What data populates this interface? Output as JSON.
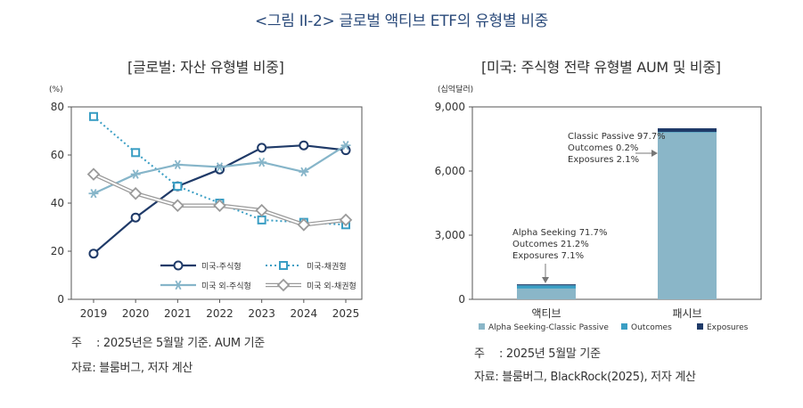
{
  "figure": {
    "title": "<그림 II-2> 글로벌 액티브 ETF의 유형별 비중"
  },
  "colors": {
    "dark_navy": "#1f3a68",
    "teal": "#3a9ec4",
    "light_blue": "#86b5c9",
    "gray": "#9a9a9a"
  },
  "chart_data": [
    {
      "type": "line",
      "title": "[글로벌: 자산 유형별 비중]",
      "ylabel": "(%)",
      "xlabel": "",
      "categories": [
        "2019",
        "2020",
        "2021",
        "2022",
        "2023",
        "2024",
        "2025"
      ],
      "ylim": [
        0,
        80
      ],
      "yticks": [
        "0",
        "20",
        "40",
        "60",
        "80"
      ],
      "grid": false,
      "legend": "bottom-right",
      "series": [
        {
          "name": "미국-주식형",
          "values": [
            19,
            34,
            47,
            54,
            63,
            64,
            62
          ],
          "style": "solid-circle",
          "color": "#1f3a68"
        },
        {
          "name": "미국-채권형",
          "values": [
            76,
            61,
            47,
            40,
            33,
            32,
            31
          ],
          "style": "dotted-square",
          "color": "#3a9ec4"
        },
        {
          "name": "미국 외-주식형",
          "values": [
            44,
            52,
            56,
            55,
            57,
            53,
            64
          ],
          "style": "solid-star",
          "color": "#86b5c9"
        },
        {
          "name": "미국 외-채권형",
          "values": [
            52,
            44,
            39,
            39,
            37,
            31,
            33
          ],
          "style": "double-diamond",
          "color": "#9a9a9a"
        }
      ]
    },
    {
      "type": "bar",
      "stacked": true,
      "title": "[미국: 주식형 전략 유형별 AUM 및 비중]",
      "ylabel": "(십억달러)",
      "xlabel": "",
      "categories": [
        "액티브",
        "패시브"
      ],
      "ylim": [
        0,
        9000
      ],
      "yticks": [
        "0",
        "3,000",
        "6,000",
        "9,000"
      ],
      "grid": false,
      "legend": "bottom",
      "series": [
        {
          "name": "Alpha Seeking-Classic Passive",
          "values": [
            503,
            7816
          ],
          "color": "#8ab6c8"
        },
        {
          "name": "Outcomes",
          "values": [
            149,
            16
          ],
          "color": "#3a9ec4"
        },
        {
          "name": "Exposures",
          "values": [
            50,
            168
          ],
          "color": "#1f3a68"
        }
      ],
      "annotations": [
        {
          "category": "액티브",
          "lines": [
            "Alpha Seeking 71.7%",
            "Outcomes 21.2%",
            "Exposures 7.1%"
          ]
        },
        {
          "category": "패시브",
          "lines": [
            "Classic Passive 97.7%",
            "Outcomes 0.2%",
            "Exposures 2.1%"
          ]
        }
      ]
    }
  ],
  "notes": {
    "left": {
      "note_label": "주",
      "note_text": ": 2025년은 5월말 기준. AUM 기준",
      "source": "자료: 블룸버그, 저자 계산"
    },
    "right": {
      "note_label": "주",
      "note_text": ": 2025년 5월말 기준",
      "source": "자료: 블룸버그, BlackRock(2025), 저자 계산"
    }
  }
}
